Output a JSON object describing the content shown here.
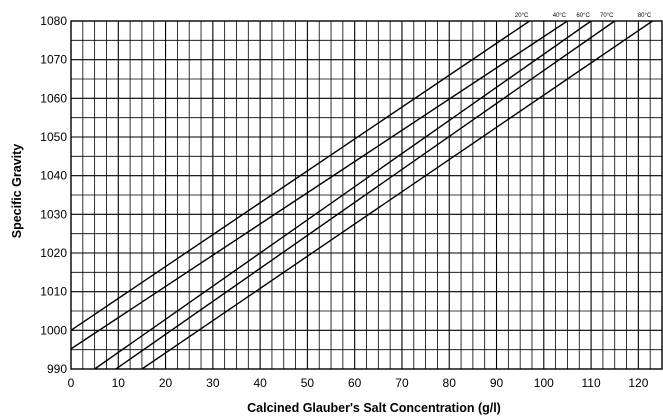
{
  "chart_data": {
    "type": "line",
    "title": "",
    "xlabel": "Calcined Glauber's Salt Concentration (g/l)",
    "ylabel": "Specific Gravity",
    "xlim": [
      0,
      125
    ],
    "ylim": [
      990,
      1080
    ],
    "x_ticks": [
      0,
      10,
      20,
      30,
      40,
      50,
      60,
      70,
      80,
      90,
      100,
      110,
      120
    ],
    "y_ticks": [
      990,
      1000,
      1010,
      1020,
      1030,
      1040,
      1050,
      1060,
      1070,
      1080
    ],
    "x_minor_step": 2.5,
    "y_minor_step": 5,
    "grid": true,
    "legend": "labels along top edge",
    "series": [
      {
        "name": "20°C",
        "x": [
          0,
          97
        ],
        "y": [
          1000,
          1080
        ]
      },
      {
        "name": "40°C",
        "x": [
          0,
          105
        ],
        "y": [
          995.2,
          1080
        ]
      },
      {
        "name": "60°C",
        "x": [
          5,
          110
        ],
        "y": [
          990,
          1080
        ]
      },
      {
        "name": "70°C",
        "x": [
          9.5,
          115
        ],
        "y": [
          990,
          1080
        ]
      },
      {
        "name": "80°C",
        "x": [
          15,
          123
        ],
        "y": [
          990,
          1080
        ]
      }
    ]
  }
}
